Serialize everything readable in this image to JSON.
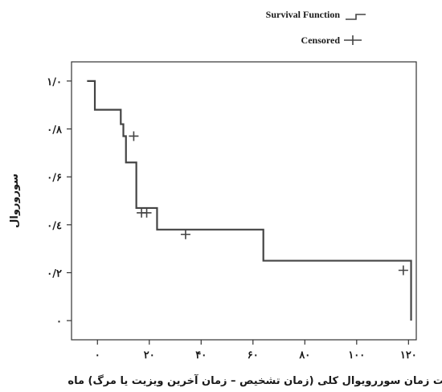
{
  "chart_data": {
    "type": "line",
    "step": "post",
    "title": "",
    "xlabel": "مدت زمان سوررویوال کلی (زمان تشخیص – زمان آخرین ویزیت یا مرگ) ماه",
    "ylabel": "سوروروال",
    "xlim": [
      -10,
      123
    ],
    "ylim": [
      -0.08,
      1.08
    ],
    "x_ticks": [
      0,
      20,
      40,
      60,
      80,
      100,
      120
    ],
    "x_tick_labels": [
      "۰",
      "۲۰",
      "۴۰",
      "۶۰",
      "۸۰",
      "۱۰۰",
      "۱۲۰"
    ],
    "y_ticks": [
      0,
      0.2,
      0.4,
      0.6,
      0.8,
      1.0
    ],
    "y_tick_labels": [
      "۰",
      "۰/۲",
      "۰/٤",
      "۰/۶",
      "۰/۸",
      "۱/۰"
    ],
    "grid": false,
    "legend_position": "top-right",
    "series": [
      {
        "name": "Survival Function",
        "color": "#444444",
        "x": [
          -4,
          -1,
          9,
          10,
          11,
          15,
          23,
          64,
          121,
          121
        ],
        "y": [
          1.0,
          0.88,
          0.82,
          0.77,
          0.66,
          0.47,
          0.38,
          0.25,
          0.25,
          0.0
        ]
      },
      {
        "name": "Censored",
        "color": "#444444",
        "x": [
          14,
          17,
          19,
          34,
          118
        ],
        "y": [
          0.77,
          0.45,
          0.45,
          0.36,
          0.21
        ]
      }
    ]
  }
}
